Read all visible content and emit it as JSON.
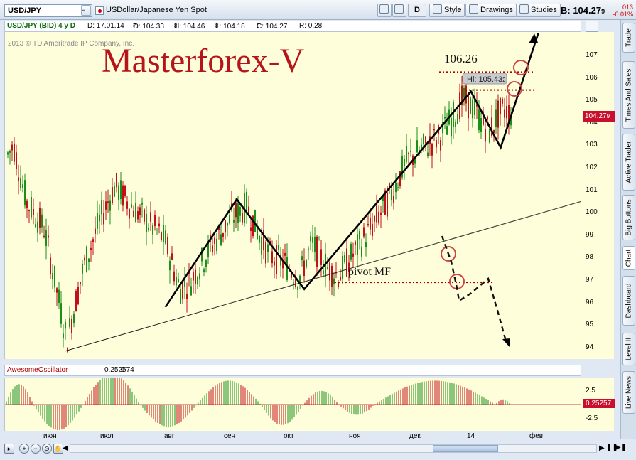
{
  "toolbar": {
    "symbol": "USD/JPY",
    "symbol_name": "USDollar/Japanese Yen Spot",
    "d_label": "D",
    "style_label": "Style",
    "drawings_label": "Drawings",
    "studies_label": "Studies",
    "bid_label": "B: 104.27",
    "bid_frac": "9",
    "change_top": ".013",
    "change_bottom": "-0.01%"
  },
  "infobar": {
    "instrument": "USD/JPY (BID) 4 y D",
    "date": "D: 17.01.14",
    "open": "O: 104.33",
    "open_frac": "7",
    "high": "H: 104.46",
    "high_frac": "8",
    "low": "L: 104.18",
    "low_frac": "8",
    "close": "C: 104.27",
    "close_frac": "9",
    "range": "R: 0.28"
  },
  "chart": {
    "copyright": "2013 © TD Ameritrade IP Company, Inc.",
    "watermark": "Masterforex-V",
    "level_label": "106.26",
    "hi_label": "Hi: 105.43",
    "hi_frac": "2",
    "pivot_label": "pivot MF",
    "last_price": "104.27",
    "last_price_frac": "9",
    "colors": {
      "up": "#1a8f1a",
      "down": "#c0101a",
      "background": "#fffeda",
      "annotation": "#b00000"
    }
  },
  "chart_data": {
    "type": "candlestick",
    "title": "USD/JPY (BID) 4 y D",
    "x_ticks": [
      "июн",
      "июл",
      "авг",
      "сен",
      "окт",
      "ноя",
      "дек",
      "14",
      "фев"
    ],
    "y_ticks": [
      "107",
      "106",
      "105",
      "104",
      "103",
      "102",
      "101",
      "100",
      "99",
      "98",
      "97",
      "96",
      "95",
      "94"
    ],
    "ylim": [
      93.5,
      108
    ],
    "annotations": {
      "resistance_level": 106.26,
      "high": 105.43,
      "pivot_level": 96.9,
      "pattern_points": [
        {
          "date": "2013-07-30",
          "price": 95.8
        },
        {
          "date": "2013-09-04",
          "price": 100.6
        },
        {
          "date": "2013-10-08",
          "price": 96.6
        },
        {
          "date": "2013-12-31",
          "price": 105.4
        },
        {
          "date": "2014-01-15",
          "price": 102.9
        },
        {
          "date": "2014-02-03",
          "price": 108.0
        }
      ]
    },
    "oscillator": {
      "name": "AwesomeOscillator",
      "value": 0.252574,
      "y_ticks": [
        "2.5",
        "-2.5"
      ]
    }
  },
  "osc": {
    "name": "AwesomeOscillator",
    "value": "0.252574",
    "zero": "0",
    "flag": "0.25257",
    "tick_top": "2.5",
    "tick_bottom": "-2.5"
  },
  "sidebar": {
    "tabs": [
      "Trade",
      "Times And Sales",
      "Active Trader",
      "Big Buttons",
      "Chart",
      "Dashboard",
      "Level II",
      "Live News"
    ]
  }
}
